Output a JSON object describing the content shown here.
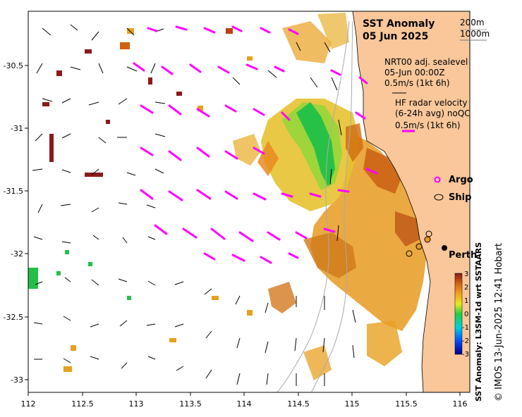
{
  "title": {
    "line1": "SST Anomaly",
    "line2": "05 Jun 2025"
  },
  "depth_legend": {
    "a": "200m",
    "b": "1000m"
  },
  "sealevel": {
    "line1": "NRT00 adj. sealevel",
    "line2": "05-Jun 00:00Z",
    "line3": "0.5m/s (1kt 6h)"
  },
  "radar": {
    "line1": "HF radar velocity",
    "line2": "(6-24h avg) noQC",
    "line3": "0.5m/s (1kt 6h)"
  },
  "markers": {
    "argo": "Argo",
    "ship": "Ship",
    "city": "Perth"
  },
  "colorbar": {
    "label": "SST Anomaly: L3SM-1d wrt SSTAARS",
    "ticks": [
      "3",
      "2",
      "1",
      "0",
      "-1",
      "-2",
      "-3"
    ]
  },
  "credit": "© IMOS 13-Jun-2025 12:41 Hobart",
  "axes": {
    "x_ticks": [
      "112",
      "112.5",
      "113",
      "113.5",
      "114",
      "114.5",
      "115",
      "115.5",
      "116"
    ],
    "y_ticks": [
      "-30.5",
      "-31",
      "-31.5",
      "-32",
      "-32.5",
      "-33"
    ]
  },
  "colors": {
    "land": "#f9c79a",
    "radar": "#ff00ff",
    "current": "#000000"
  }
}
